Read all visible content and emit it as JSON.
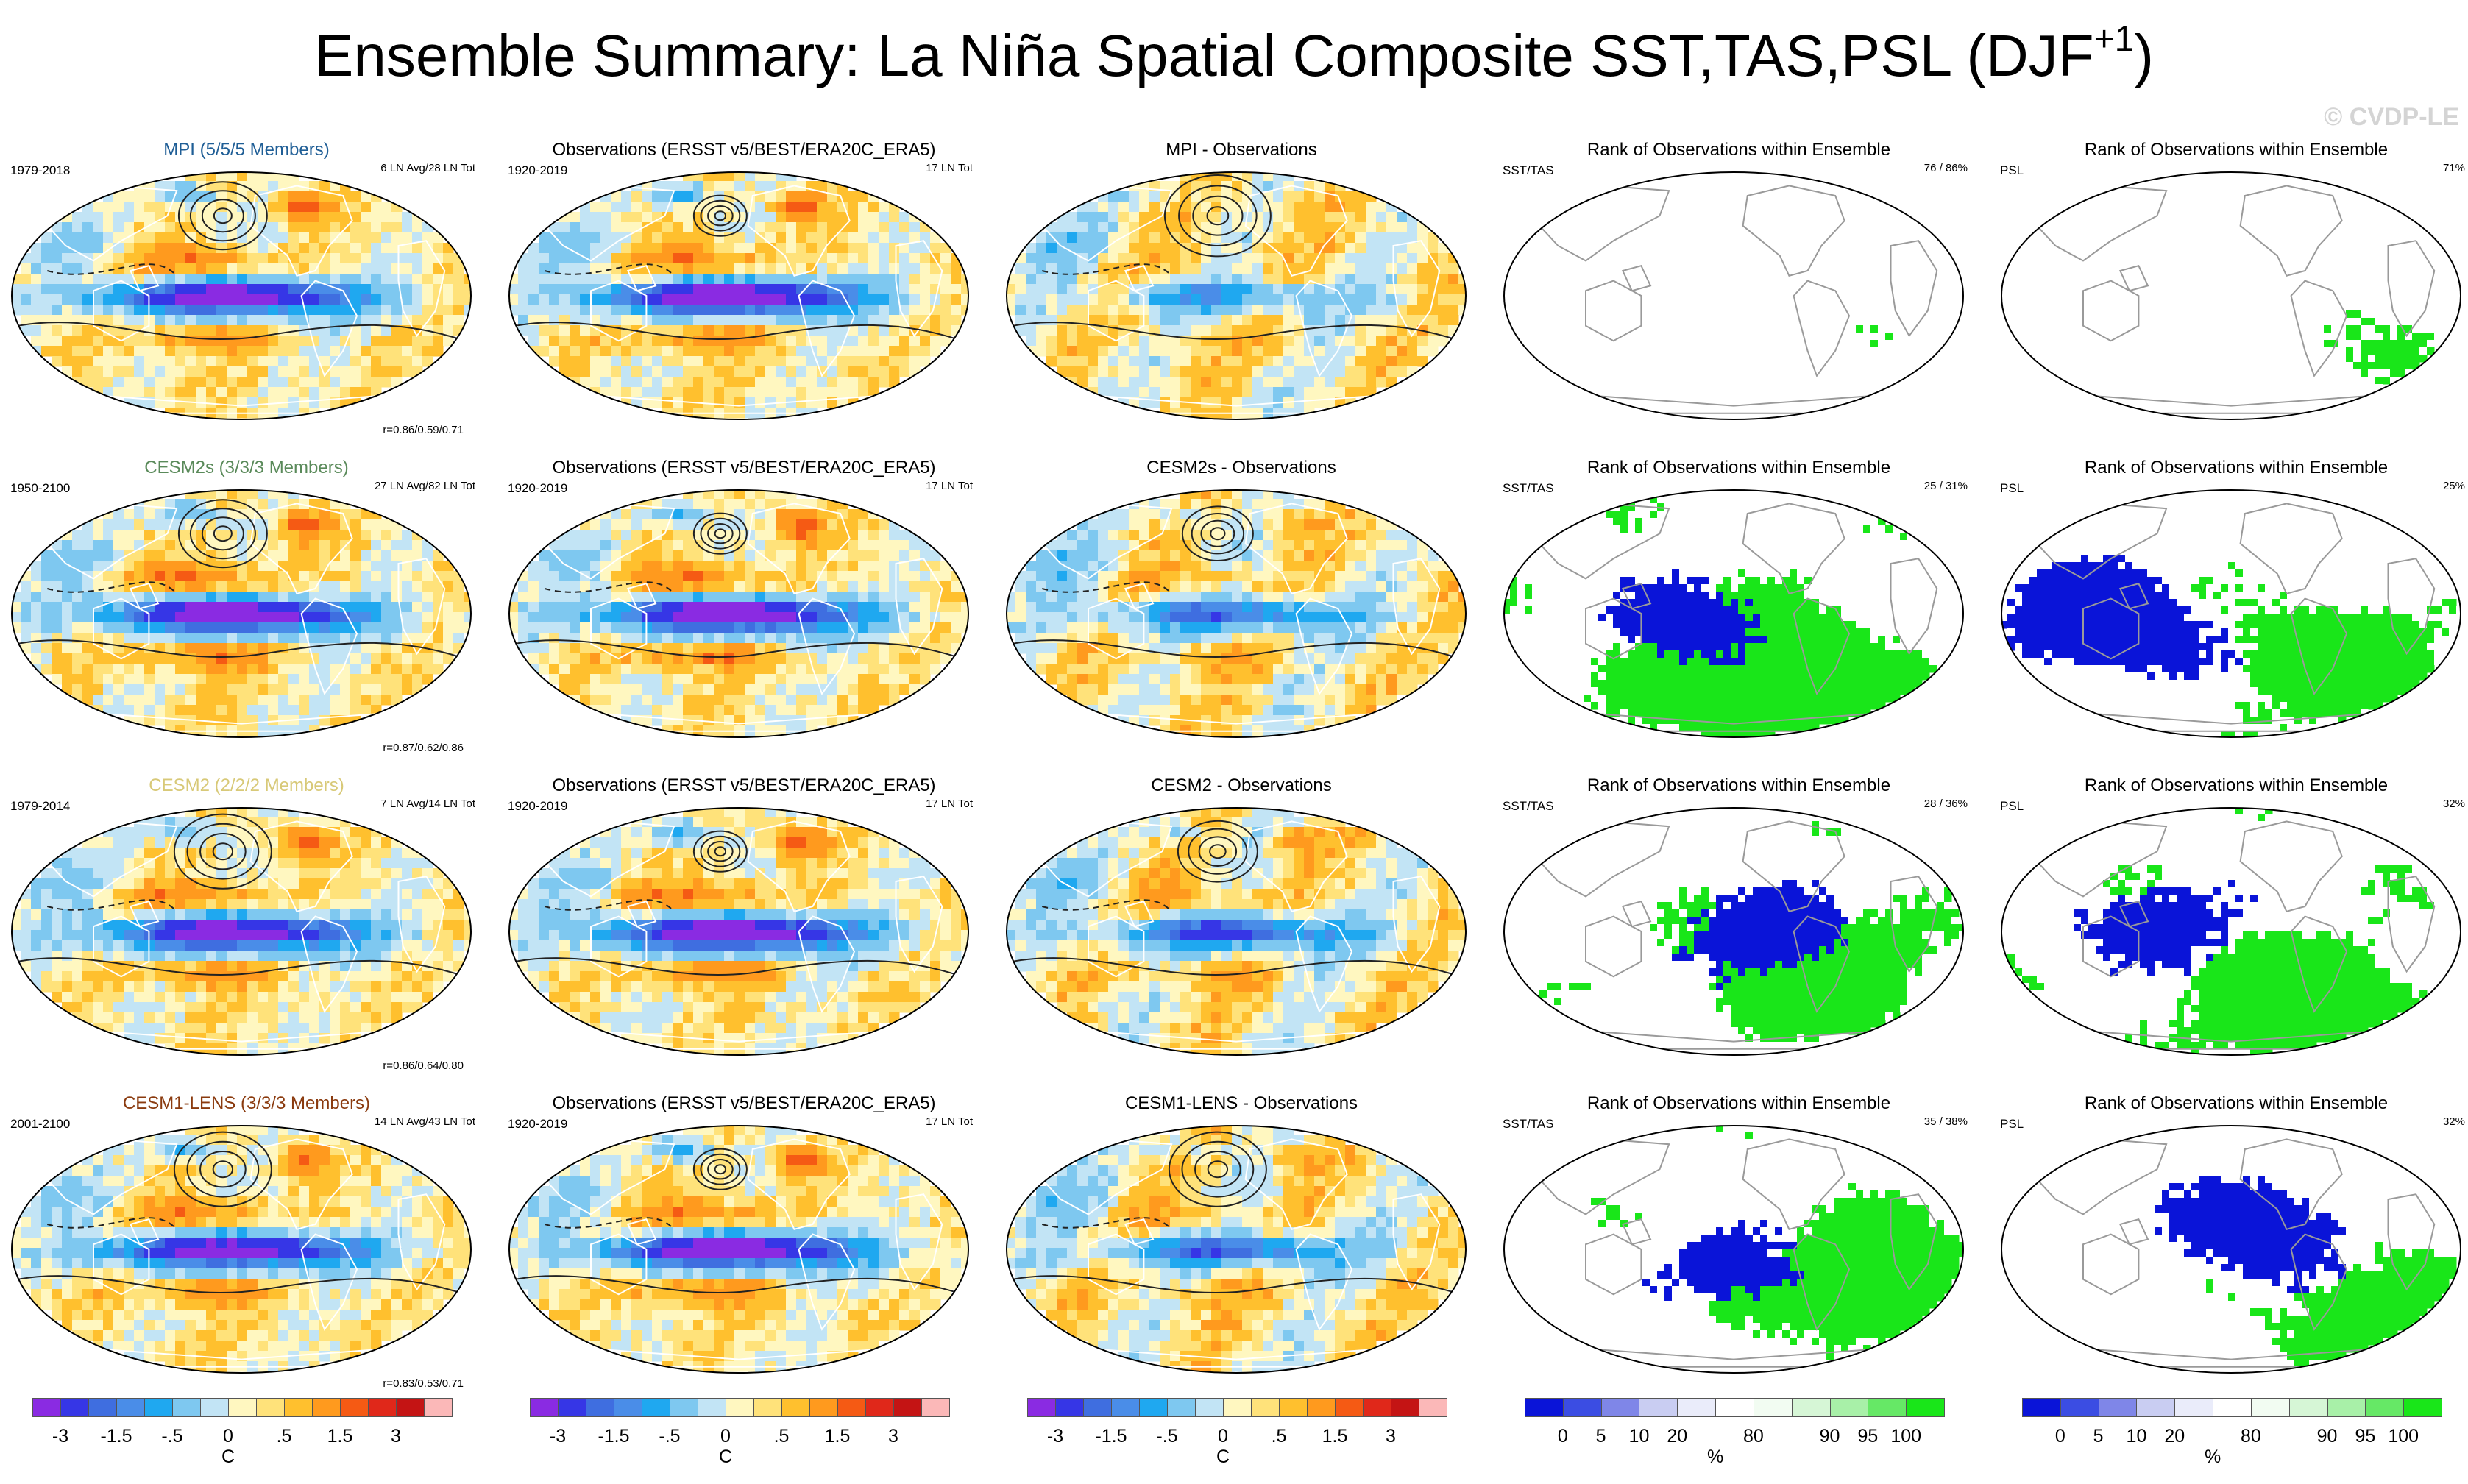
{
  "title": "Ensemble Summary: La Niña Spatial Composite SST,TAS,PSL (DJF",
  "title_sup": "+1",
  "watermark": "© CVDP-LE",
  "colors": {
    "anomaly_scale": [
      "#8a2be2",
      "#3636e6",
      "#3f6ee0",
      "#4a8de8",
      "#1fa8f0",
      "#7ec8f0",
      "#c2e4f5",
      "#fff7c0",
      "#ffe27a",
      "#ffc02e",
      "#ff9a1e",
      "#f55a14",
      "#e0281a",
      "#c41414",
      "#fbb8b8"
    ],
    "rank_scale": [
      "#0a14d8",
      "#3b4de3",
      "#7f86e8",
      "#c9cdf2",
      "#eaecfa",
      "#ffffff",
      "#f2fcf2",
      "#d6f6d6",
      "#a8f0a8",
      "#66e866",
      "#19e619"
    ],
    "land_outline": "#aaaaaa",
    "contour": "#222222"
  },
  "chart_data": [
    {
      "type": "map",
      "title": "MPI (5/5/5 Members)",
      "title_color": "#1f5e96",
      "left": "1979-2018",
      "right": "6 LN Avg/28 LN Tot",
      "corr": "r=0.86/0.59/0.71",
      "kind": "anomaly",
      "cold_strength": 1.0,
      "pacific_contours": 1.0
    },
    {
      "type": "map",
      "title": "Observations (ERSST v5/BEST/ERA20C_ERA5)",
      "title_color": "#000000",
      "left": "1920-2019",
      "right": "17 LN Tot",
      "corr": "",
      "kind": "anomaly",
      "cold_strength": 1.1,
      "pacific_contours": 0.6
    },
    {
      "type": "map",
      "title": "MPI - Observations",
      "title_color": "#000000",
      "left": "",
      "right": "",
      "corr": "",
      "kind": "difference",
      "cold_strength": 0.3,
      "pacific_contours": 1.2
    },
    {
      "type": "map",
      "title": "Rank of Observations within Ensemble",
      "title_color": "#000000",
      "left": "SST/TAS",
      "right": "76 /  86%",
      "corr": "",
      "kind": "rank",
      "blue_fraction": 0.08,
      "green_fraction": 0.18
    },
    {
      "type": "map",
      "title": "Rank of Observations within Ensemble",
      "title_color": "#000000",
      "left": "PSL",
      "right": "71%",
      "corr": "",
      "kind": "rank",
      "blue_fraction": 0.12,
      "green_fraction": 0.22
    },
    {
      "type": "map",
      "title": "CESM2s (3/3/3 Members)",
      "title_color": "#5a8a5a",
      "left": "1950-2100",
      "right": "27 LN Avg/82 LN Tot",
      "corr": "r=0.87/0.62/0.86",
      "kind": "anomaly",
      "cold_strength": 1.1,
      "pacific_contours": 1.0
    },
    {
      "type": "map",
      "title": "Observations (ERSST v5/BEST/ERA20C_ERA5)",
      "title_color": "#000000",
      "left": "1920-2019",
      "right": "17 LN Tot",
      "corr": "",
      "kind": "anomaly",
      "cold_strength": 1.1,
      "pacific_contours": 0.6
    },
    {
      "type": "map",
      "title": "CESM2s - Observations",
      "title_color": "#000000",
      "left": "",
      "right": "",
      "corr": "",
      "kind": "difference",
      "cold_strength": 0.5,
      "pacific_contours": 0.8
    },
    {
      "type": "map",
      "title": "Rank of Observations within Ensemble",
      "title_color": "#000000",
      "left": "SST/TAS",
      "right": "25 /  31%",
      "corr": "",
      "kind": "rank",
      "blue_fraction": 0.3,
      "green_fraction": 0.5
    },
    {
      "type": "map",
      "title": "Rank of Observations within Ensemble",
      "title_color": "#000000",
      "left": "PSL",
      "right": "25%",
      "corr": "",
      "kind": "rank",
      "blue_fraction": 0.45,
      "green_fraction": 0.4
    },
    {
      "type": "map",
      "title": "CESM2 (2/2/2 Members)",
      "title_color": "#d8c978",
      "left": "1979-2014",
      "right": "7 LN Avg/14 LN Tot",
      "corr": "r=0.86/0.64/0.80",
      "kind": "anomaly",
      "cold_strength": 1.0,
      "pacific_contours": 1.1
    },
    {
      "type": "map",
      "title": "Observations (ERSST v5/BEST/ERA20C_ERA5)",
      "title_color": "#000000",
      "left": "1920-2019",
      "right": "17 LN Tot",
      "corr": "",
      "kind": "anomaly",
      "cold_strength": 1.1,
      "pacific_contours": 0.6
    },
    {
      "type": "map",
      "title": "CESM2 - Observations",
      "title_color": "#000000",
      "left": "",
      "right": "",
      "corr": "",
      "kind": "difference",
      "cold_strength": 0.6,
      "pacific_contours": 0.9
    },
    {
      "type": "map",
      "title": "Rank of Observations within Ensemble",
      "title_color": "#000000",
      "left": "SST/TAS",
      "right": "28 /  36%",
      "corr": "",
      "kind": "rank",
      "blue_fraction": 0.32,
      "green_fraction": 0.45
    },
    {
      "type": "map",
      "title": "Rank of Observations within Ensemble",
      "title_color": "#000000",
      "left": "PSL",
      "right": "32%",
      "corr": "",
      "kind": "rank",
      "blue_fraction": 0.3,
      "green_fraction": 0.5
    },
    {
      "type": "map",
      "title": "CESM1-LENS (3/3/3 Members)",
      "title_color": "#8a3a0e",
      "left": "2001-2100",
      "right": "14 LN Avg/43 LN Tot",
      "corr": "r=0.83/0.53/0.71",
      "kind": "anomaly",
      "cold_strength": 1.0,
      "pacific_contours": 1.1
    },
    {
      "type": "map",
      "title": "Observations (ERSST v5/BEST/ERA20C_ERA5)",
      "title_color": "#000000",
      "left": "1920-2019",
      "right": "17 LN Tot",
      "corr": "",
      "kind": "anomaly",
      "cold_strength": 1.1,
      "pacific_contours": 0.6
    },
    {
      "type": "map",
      "title": "CESM1-LENS - Observations",
      "title_color": "#000000",
      "left": "",
      "right": "",
      "corr": "",
      "kind": "difference",
      "cold_strength": 0.5,
      "pacific_contours": 1.1
    },
    {
      "type": "map",
      "title": "Rank of Observations within Ensemble",
      "title_color": "#000000",
      "left": "SST/TAS",
      "right": "35 /  38%",
      "corr": "",
      "kind": "rank",
      "blue_fraction": 0.28,
      "green_fraction": 0.45
    },
    {
      "type": "map",
      "title": "Rank of Observations within Ensemble",
      "title_color": "#000000",
      "left": "PSL",
      "right": "32%",
      "corr": "",
      "kind": "rank",
      "blue_fraction": 0.35,
      "green_fraction": 0.35
    }
  ],
  "colorbars": [
    {
      "kind": "anomaly",
      "labels": [
        "-3",
        "-1.5",
        "-.5",
        "0",
        ".5",
        "1.5",
        "3"
      ],
      "label_slots": [
        1,
        3,
        5,
        7,
        9,
        11,
        13
      ],
      "unit": "C"
    },
    {
      "kind": "anomaly",
      "labels": [
        "-3",
        "-1.5",
        "-.5",
        "0",
        ".5",
        "1.5",
        "3"
      ],
      "label_slots": [
        1,
        3,
        5,
        7,
        9,
        11,
        13
      ],
      "unit": "C"
    },
    {
      "kind": "anomaly",
      "labels": [
        "-3",
        "-1.5",
        "-.5",
        "0",
        ".5",
        "1.5",
        "3"
      ],
      "label_slots": [
        1,
        3,
        5,
        7,
        9,
        11,
        13
      ],
      "unit": "C"
    },
    {
      "kind": "rank",
      "labels": [
        "0",
        "5",
        "10",
        "20",
        "80",
        "90",
        "95",
        "100"
      ],
      "label_slots": [
        1,
        2,
        3,
        4,
        6,
        8,
        9,
        10
      ],
      "unit": "%"
    },
    {
      "kind": "rank",
      "labels": [
        "0",
        "5",
        "10",
        "20",
        "80",
        "90",
        "95",
        "100"
      ],
      "label_slots": [
        1,
        2,
        3,
        4,
        6,
        8,
        9,
        10
      ],
      "unit": "%"
    }
  ]
}
